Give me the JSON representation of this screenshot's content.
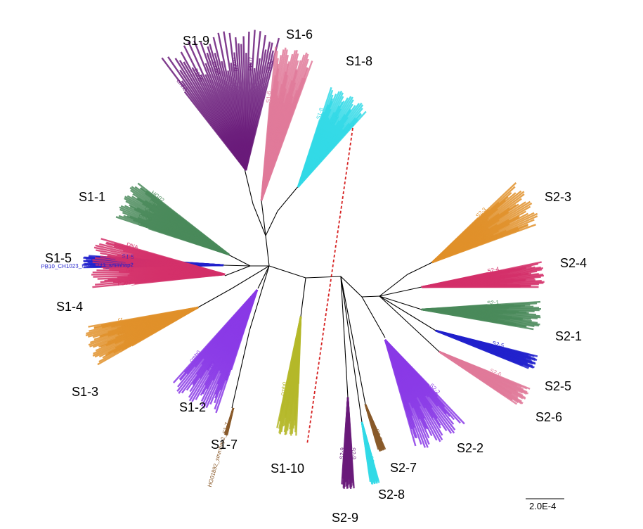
{
  "tree": {
    "separator_color": "#d62020",
    "scale_bar_label": "2.0E-4",
    "clades": [
      {
        "id": "S1-9",
        "label": "S1-9",
        "color": "#6a1b7a",
        "leaf_text": [
          "cmh0",
          "PB05",
          "cmh0",
          "cmh0",
          "PB07",
          "S1-9c"
        ]
      },
      {
        "id": "S1-6",
        "label": "S1-6",
        "color": "#e07a9a",
        "leaf_text": [
          "S1-6",
          "S1-6",
          "S1-6c"
        ]
      },
      {
        "id": "S1-8",
        "label": "S1-8",
        "color": "#33d9e6",
        "leaf_text": [
          "S1-8",
          "S1-8",
          "S1-8"
        ]
      },
      {
        "id": "S1-1",
        "label": "S1-1",
        "color": "#4a8a5a",
        "leaf_text": [
          "GEL",
          "cmh0",
          "GEL",
          "GEL",
          "HG02"
        ]
      },
      {
        "id": "S1-5",
        "label": "S1-5",
        "color": "#2222cc",
        "leaf_text": [
          "PB10_CH1023_HG01243_smmhap2",
          "S1-5"
        ]
      },
      {
        "id": "S1-4",
        "label": "S1-4",
        "color": "#d4306a",
        "leaf_text": [
          "PB02_",
          "GE",
          "cmh0",
          "DNA"
        ]
      },
      {
        "id": "S1-3",
        "label": "S1-3",
        "color": "#e0902a",
        "leaf_text": [
          "cmh0",
          "GE",
          "cr"
        ]
      },
      {
        "id": "S1-2",
        "label": "S1-2",
        "color": "#8a3ae6",
        "leaf_text": [
          "GEL",
          "PB0",
          "cmh0"
        ]
      },
      {
        "id": "S1-7",
        "label": "S1-7",
        "color": "#8a5a2a",
        "leaf_text": [
          "HG01892_smmhap2_S1-7"
        ]
      },
      {
        "id": "S1-10",
        "label": "S1-10",
        "color": "#b5b82a",
        "leaf_text": [
          "HG02",
          "cmh0"
        ]
      },
      {
        "id": "S2-9",
        "label": "S2-9",
        "color": "#6a1b7a",
        "leaf_text": [
          "S2-9",
          "S2-9"
        ]
      },
      {
        "id": "S2-8",
        "label": "S2-8",
        "color": "#33d9e6",
        "leaf_text": [
          "S2-8"
        ]
      },
      {
        "id": "S2-7",
        "label": "S2-7",
        "color": "#8a5a2a",
        "leaf_text": [
          "S2-7"
        ]
      },
      {
        "id": "S2-2",
        "label": "S2-2",
        "color": "#8a3ae6",
        "leaf_text": [
          "S2-2",
          "S2-2"
        ]
      },
      {
        "id": "S2-6",
        "label": "S2-6",
        "color": "#e07a9a",
        "leaf_text": [
          "S2-6",
          "S2-6"
        ]
      },
      {
        "id": "S2-5",
        "label": "S2-5",
        "color": "#2222cc",
        "leaf_text": [
          "S2-5",
          "S2-5"
        ]
      },
      {
        "id": "S2-1",
        "label": "S2-1",
        "color": "#4a8a5a",
        "leaf_text": [
          "S2-1",
          "S2-1",
          "S2-1"
        ]
      },
      {
        "id": "S2-4",
        "label": "S2-4",
        "color": "#d4306a",
        "leaf_text": [
          "S2-4",
          "S2-4"
        ]
      },
      {
        "id": "S2-3",
        "label": "S2-3",
        "color": "#e0902a",
        "leaf_text": [
          "S2-3",
          "S2-3"
        ]
      }
    ]
  }
}
